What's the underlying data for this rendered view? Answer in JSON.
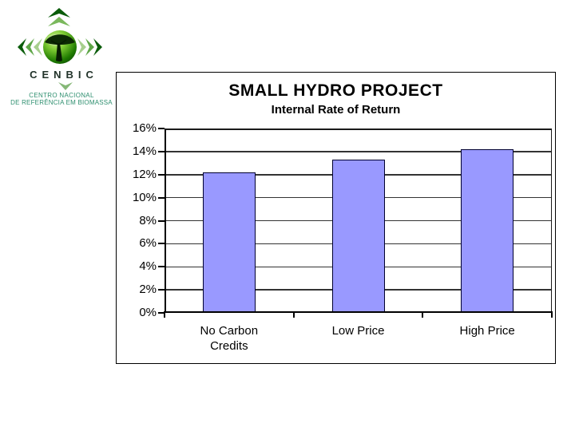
{
  "slide": {
    "background": "#FFFFFF"
  },
  "logo": {
    "acronym": "CENBIC",
    "org_line1": "CENTRO NACIONAL",
    "org_line2": "DE REFERÊNCIA EM BIOMASSA",
    "acronym_color": "#22332A",
    "org_text_color": "#2E8F6F",
    "sphere_color": "#2E8F1F"
  },
  "chart_data": {
    "type": "bar",
    "title": "SMALL HYDRO PROJECT",
    "subtitle": "Internal Rate of Return",
    "categories": [
      "No Carbon Credits",
      "Low Price",
      "High Price"
    ],
    "values": [
      12.2,
      13.3,
      14.2
    ],
    "value_unit": "%",
    "xlabel": "",
    "ylabel": "",
    "ylim": [
      0,
      16
    ],
    "ytick_step": 2,
    "ytick_labels": [
      "0%",
      "2%",
      "4%",
      "6%",
      "8%",
      "10%",
      "12%",
      "14%",
      "16%"
    ],
    "grid": true,
    "legend": false,
    "bar_fill": "#9999FF",
    "bar_border": "#000030",
    "axis_color": "#000000",
    "gridline_color": "#333333"
  }
}
